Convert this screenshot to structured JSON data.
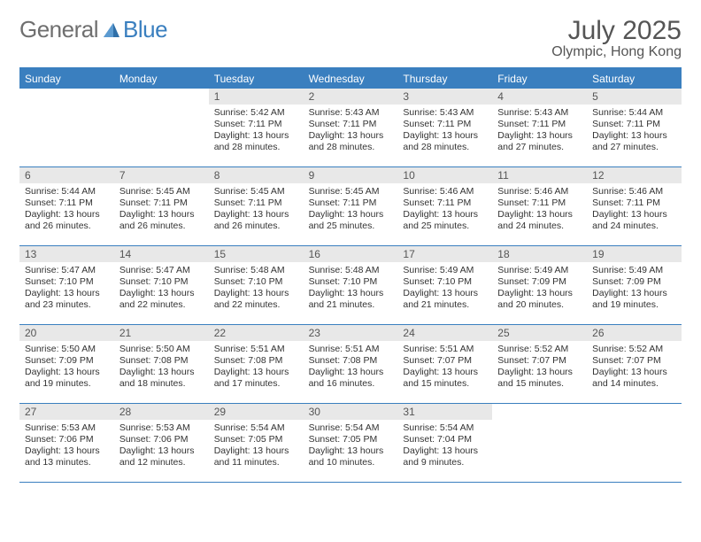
{
  "logo": {
    "text1": "General",
    "text2": "Blue"
  },
  "title": "July 2025",
  "location": "Olympic, Hong Kong",
  "colors": {
    "accent": "#3a7fbf",
    "daynum_bg": "#e8e8e8",
    "text": "#333333",
    "title_text": "#555555"
  },
  "day_headers": [
    "Sunday",
    "Monday",
    "Tuesday",
    "Wednesday",
    "Thursday",
    "Friday",
    "Saturday"
  ],
  "weeks": [
    [
      null,
      null,
      {
        "n": "1",
        "sr": "Sunrise: 5:42 AM",
        "ss": "Sunset: 7:11 PM",
        "dl1": "Daylight: 13 hours",
        "dl2": "and 28 minutes."
      },
      {
        "n": "2",
        "sr": "Sunrise: 5:43 AM",
        "ss": "Sunset: 7:11 PM",
        "dl1": "Daylight: 13 hours",
        "dl2": "and 28 minutes."
      },
      {
        "n": "3",
        "sr": "Sunrise: 5:43 AM",
        "ss": "Sunset: 7:11 PM",
        "dl1": "Daylight: 13 hours",
        "dl2": "and 28 minutes."
      },
      {
        "n": "4",
        "sr": "Sunrise: 5:43 AM",
        "ss": "Sunset: 7:11 PM",
        "dl1": "Daylight: 13 hours",
        "dl2": "and 27 minutes."
      },
      {
        "n": "5",
        "sr": "Sunrise: 5:44 AM",
        "ss": "Sunset: 7:11 PM",
        "dl1": "Daylight: 13 hours",
        "dl2": "and 27 minutes."
      }
    ],
    [
      {
        "n": "6",
        "sr": "Sunrise: 5:44 AM",
        "ss": "Sunset: 7:11 PM",
        "dl1": "Daylight: 13 hours",
        "dl2": "and 26 minutes."
      },
      {
        "n": "7",
        "sr": "Sunrise: 5:45 AM",
        "ss": "Sunset: 7:11 PM",
        "dl1": "Daylight: 13 hours",
        "dl2": "and 26 minutes."
      },
      {
        "n": "8",
        "sr": "Sunrise: 5:45 AM",
        "ss": "Sunset: 7:11 PM",
        "dl1": "Daylight: 13 hours",
        "dl2": "and 26 minutes."
      },
      {
        "n": "9",
        "sr": "Sunrise: 5:45 AM",
        "ss": "Sunset: 7:11 PM",
        "dl1": "Daylight: 13 hours",
        "dl2": "and 25 minutes."
      },
      {
        "n": "10",
        "sr": "Sunrise: 5:46 AM",
        "ss": "Sunset: 7:11 PM",
        "dl1": "Daylight: 13 hours",
        "dl2": "and 25 minutes."
      },
      {
        "n": "11",
        "sr": "Sunrise: 5:46 AM",
        "ss": "Sunset: 7:11 PM",
        "dl1": "Daylight: 13 hours",
        "dl2": "and 24 minutes."
      },
      {
        "n": "12",
        "sr": "Sunrise: 5:46 AM",
        "ss": "Sunset: 7:11 PM",
        "dl1": "Daylight: 13 hours",
        "dl2": "and 24 minutes."
      }
    ],
    [
      {
        "n": "13",
        "sr": "Sunrise: 5:47 AM",
        "ss": "Sunset: 7:10 PM",
        "dl1": "Daylight: 13 hours",
        "dl2": "and 23 minutes."
      },
      {
        "n": "14",
        "sr": "Sunrise: 5:47 AM",
        "ss": "Sunset: 7:10 PM",
        "dl1": "Daylight: 13 hours",
        "dl2": "and 22 minutes."
      },
      {
        "n": "15",
        "sr": "Sunrise: 5:48 AM",
        "ss": "Sunset: 7:10 PM",
        "dl1": "Daylight: 13 hours",
        "dl2": "and 22 minutes."
      },
      {
        "n": "16",
        "sr": "Sunrise: 5:48 AM",
        "ss": "Sunset: 7:10 PM",
        "dl1": "Daylight: 13 hours",
        "dl2": "and 21 minutes."
      },
      {
        "n": "17",
        "sr": "Sunrise: 5:49 AM",
        "ss": "Sunset: 7:10 PM",
        "dl1": "Daylight: 13 hours",
        "dl2": "and 21 minutes."
      },
      {
        "n": "18",
        "sr": "Sunrise: 5:49 AM",
        "ss": "Sunset: 7:09 PM",
        "dl1": "Daylight: 13 hours",
        "dl2": "and 20 minutes."
      },
      {
        "n": "19",
        "sr": "Sunrise: 5:49 AM",
        "ss": "Sunset: 7:09 PM",
        "dl1": "Daylight: 13 hours",
        "dl2": "and 19 minutes."
      }
    ],
    [
      {
        "n": "20",
        "sr": "Sunrise: 5:50 AM",
        "ss": "Sunset: 7:09 PM",
        "dl1": "Daylight: 13 hours",
        "dl2": "and 19 minutes."
      },
      {
        "n": "21",
        "sr": "Sunrise: 5:50 AM",
        "ss": "Sunset: 7:08 PM",
        "dl1": "Daylight: 13 hours",
        "dl2": "and 18 minutes."
      },
      {
        "n": "22",
        "sr": "Sunrise: 5:51 AM",
        "ss": "Sunset: 7:08 PM",
        "dl1": "Daylight: 13 hours",
        "dl2": "and 17 minutes."
      },
      {
        "n": "23",
        "sr": "Sunrise: 5:51 AM",
        "ss": "Sunset: 7:08 PM",
        "dl1": "Daylight: 13 hours",
        "dl2": "and 16 minutes."
      },
      {
        "n": "24",
        "sr": "Sunrise: 5:51 AM",
        "ss": "Sunset: 7:07 PM",
        "dl1": "Daylight: 13 hours",
        "dl2": "and 15 minutes."
      },
      {
        "n": "25",
        "sr": "Sunrise: 5:52 AM",
        "ss": "Sunset: 7:07 PM",
        "dl1": "Daylight: 13 hours",
        "dl2": "and 15 minutes."
      },
      {
        "n": "26",
        "sr": "Sunrise: 5:52 AM",
        "ss": "Sunset: 7:07 PM",
        "dl1": "Daylight: 13 hours",
        "dl2": "and 14 minutes."
      }
    ],
    [
      {
        "n": "27",
        "sr": "Sunrise: 5:53 AM",
        "ss": "Sunset: 7:06 PM",
        "dl1": "Daylight: 13 hours",
        "dl2": "and 13 minutes."
      },
      {
        "n": "28",
        "sr": "Sunrise: 5:53 AM",
        "ss": "Sunset: 7:06 PM",
        "dl1": "Daylight: 13 hours",
        "dl2": "and 12 minutes."
      },
      {
        "n": "29",
        "sr": "Sunrise: 5:54 AM",
        "ss": "Sunset: 7:05 PM",
        "dl1": "Daylight: 13 hours",
        "dl2": "and 11 minutes."
      },
      {
        "n": "30",
        "sr": "Sunrise: 5:54 AM",
        "ss": "Sunset: 7:05 PM",
        "dl1": "Daylight: 13 hours",
        "dl2": "and 10 minutes."
      },
      {
        "n": "31",
        "sr": "Sunrise: 5:54 AM",
        "ss": "Sunset: 7:04 PM",
        "dl1": "Daylight: 13 hours",
        "dl2": "and 9 minutes."
      },
      null,
      null
    ]
  ]
}
